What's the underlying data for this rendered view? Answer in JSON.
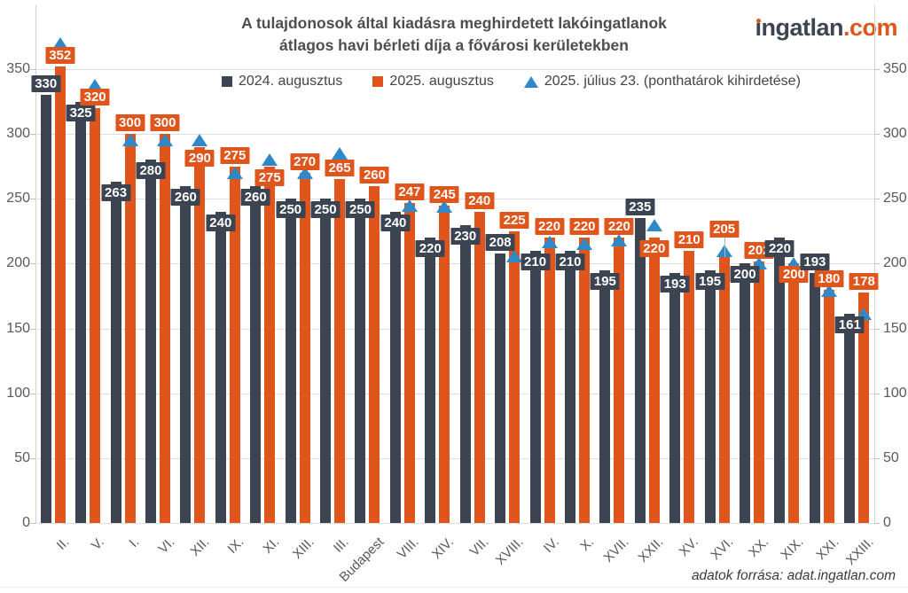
{
  "header": {
    "title_line1": "A tulajdonosok által kiadásra meghirdetett lakóingatlanok",
    "title_line2": "átlagos havi bérleti díja a fővárosi kerületekben"
  },
  "logo": {
    "name": "ingatlan",
    "tld": ".com"
  },
  "footer": {
    "source": "adatok forrása: adat.ingatlan.com"
  },
  "chart_data": {
    "type": "bar",
    "title": "A tulajdonosok által kiadásra meghirdetett lakóingatlanok átlagos havi bérleti díja a fővárosi kerületekben",
    "categories": [
      "II.",
      "V.",
      "I.",
      "VI.",
      "XII.",
      "IX.",
      "XI.",
      "XIII.",
      "III.",
      "Budapest",
      "VIII.",
      "XIV.",
      "VII.",
      "XVIII.",
      "IV.",
      "X.",
      "XVII.",
      "XXII.",
      "XV.",
      "XVI.",
      "XX.",
      "XIX.",
      "XXI.",
      "XXIII."
    ],
    "series": [
      {
        "name": "2024. augusztus",
        "color": "#3d4451",
        "values": [
          330,
          325,
          263,
          280,
          260,
          240,
          260,
          250,
          250,
          250,
          240,
          220,
          230,
          208,
          210,
          210,
          195,
          235,
          193,
          195,
          200,
          220,
          193,
          161
        ]
      },
      {
        "name": "2025. augusztus",
        "color": "#e0551c",
        "values": [
          352,
          320,
          300,
          300,
          290,
          275,
          275,
          270,
          265,
          260,
          247,
          245,
          240,
          225,
          220,
          220,
          220,
          220,
          210,
          205,
          202,
          200,
          180,
          178
        ]
      }
    ],
    "markers": {
      "name": "2025. július 23. (ponthatárok kihirdetése)",
      "color": "#2f88c8",
      "shape": "triangle-up",
      "values": [
        370,
        338,
        295,
        295,
        295,
        270,
        280,
        270,
        285,
        null,
        245,
        244,
        null,
        206,
        217,
        215,
        218,
        230,
        null,
        210,
        200,
        200,
        179,
        161
      ]
    },
    "pattern_category": "Budapest",
    "ylim": [
      0,
      350
    ],
    "ytick_step": 50,
    "grid": true,
    "legend_position": "top",
    "ylabel": "",
    "xlabel": ""
  }
}
